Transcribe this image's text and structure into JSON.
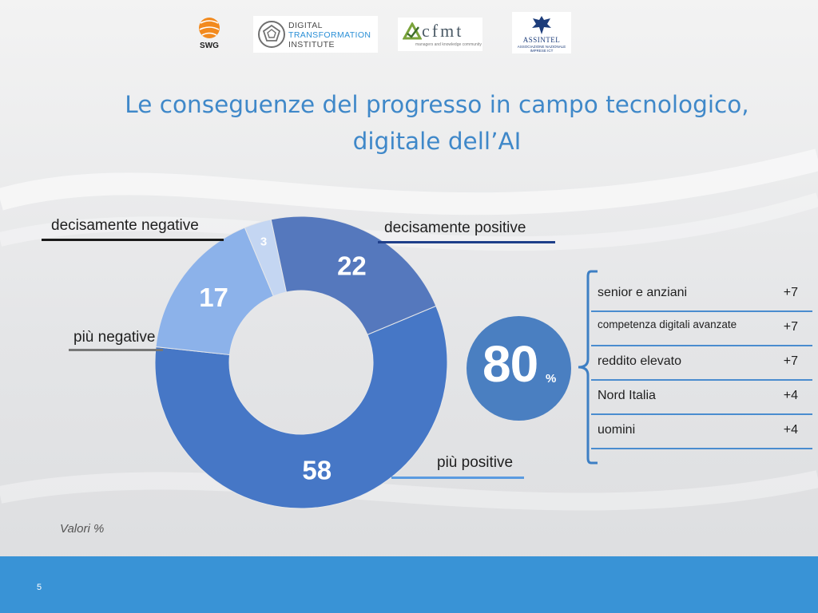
{
  "header": {
    "logos": {
      "swg": "SWG",
      "dti": {
        "line1": "DIGITAL",
        "line2": "TRANSFORMATION",
        "line3": "INSTITUTE"
      },
      "cfmt": {
        "name": "cfmt",
        "tagline": "managers and knowledge community"
      },
      "assintel": {
        "name": "ASSINTEL",
        "tagline": "ASSOCIAZIONE NAZIONALE IMPRESE ICT"
      }
    }
  },
  "title": {
    "line1": "Le conseguenze del progresso in campo tecnologico,",
    "line2": "digitale dell’AI"
  },
  "chart_data": {
    "type": "pie",
    "variant": "donut",
    "unit": "%",
    "series": [
      {
        "label": "più positive",
        "value": 58,
        "color": "#4677c6"
      },
      {
        "label": "più negative",
        "value": 17,
        "color": "#8cb2ea"
      },
      {
        "label": "decisamente negative",
        "value": 3,
        "color": "#c4d6f2"
      },
      {
        "label": "decisamente positive",
        "value": 22,
        "color": "#5578bd"
      }
    ]
  },
  "labels": {
    "decisamente_negative": "decisamente negative",
    "decisamente_positive": "decisamente positive",
    "piu_negative": "più negative",
    "piu_positive": "più positive"
  },
  "badge": {
    "value": "80",
    "unit": "%"
  },
  "breakdown": [
    {
      "name": "senior e anziani",
      "delta": "+7"
    },
    {
      "name": "competenza digitali avanzate",
      "delta": "+7"
    },
    {
      "name": "reddito elevato",
      "delta": "+7"
    },
    {
      "name": "Nord Italia",
      "delta": "+4"
    },
    {
      "name": "uomini",
      "delta": "+4"
    }
  ],
  "note": "Valori %",
  "footer": {
    "page": "5"
  }
}
